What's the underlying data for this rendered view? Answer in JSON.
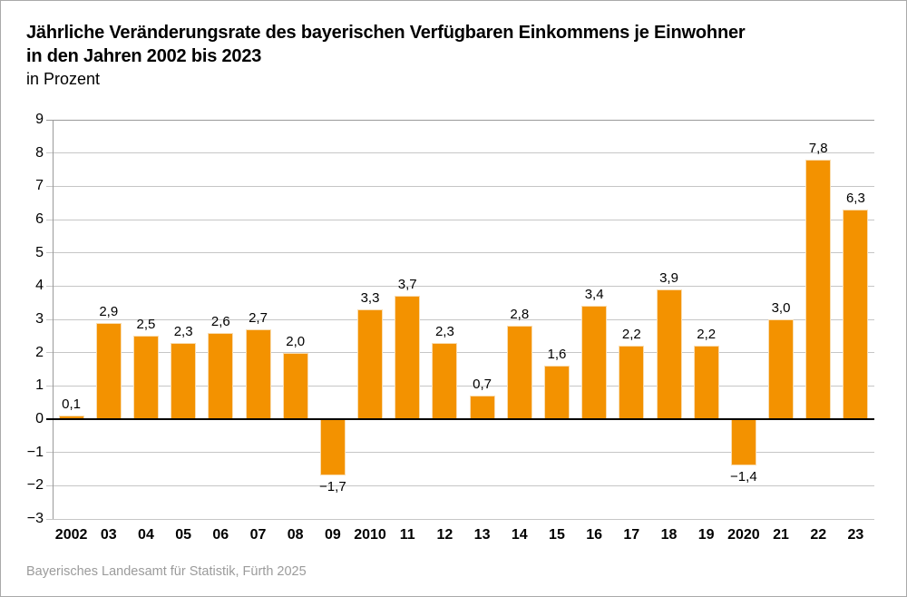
{
  "header": {
    "title_line1": "Jährliche Veränderungsrate des bayerischen Verfügbaren Einkommens je Einwohner",
    "title_line2": "in den Jahren 2002 bis 2023",
    "subtitle": "in Prozent"
  },
  "footer": {
    "source": "Bayerisches Landesamt für Statistik, Fürth 2025"
  },
  "chart_data": {
    "type": "bar",
    "title": "Jährliche Veränderungsrate des bayerischen Verfügbaren Einkommens je Einwohner in den Jahren 2002 bis 2023",
    "unit": "Prozent",
    "categories": [
      "2002",
      "03",
      "04",
      "05",
      "06",
      "07",
      "08",
      "09",
      "2010",
      "11",
      "12",
      "13",
      "14",
      "15",
      "16",
      "17",
      "18",
      "19",
      "2020",
      "21",
      "22",
      "23"
    ],
    "values": [
      0.1,
      2.9,
      2.5,
      2.3,
      2.6,
      2.7,
      2.0,
      -1.7,
      3.3,
      3.7,
      2.3,
      0.7,
      2.8,
      1.6,
      3.4,
      2.2,
      3.9,
      2.2,
      -1.4,
      3.0,
      7.8,
      6.3
    ],
    "value_labels": [
      "0,1",
      "2,9",
      "2,5",
      "2,3",
      "2,6",
      "2,7",
      "2,0",
      "−1,7",
      "3,3",
      "3,7",
      "2,3",
      "0,7",
      "2,8",
      "1,6",
      "3,4",
      "2,2",
      "3,9",
      "2,2",
      "−1,4",
      "3,0",
      "7,8",
      "6,3"
    ],
    "xlabel": "",
    "ylabel": "",
    "ylim": [
      -3,
      9
    ],
    "yticks": [
      "9",
      "8",
      "7",
      "6",
      "5",
      "4",
      "3",
      "2",
      "1",
      "0",
      "−1",
      "−2",
      "−3"
    ],
    "grid": true,
    "legend": false,
    "colors": {
      "bar": "#F39200",
      "bar_edge": "#F9DDB0",
      "grid": "#C6C6C6",
      "axis": "#9A9A9A",
      "zero_line": "#000000",
      "text": "#000000",
      "source_text": "#9B9B9B"
    }
  }
}
